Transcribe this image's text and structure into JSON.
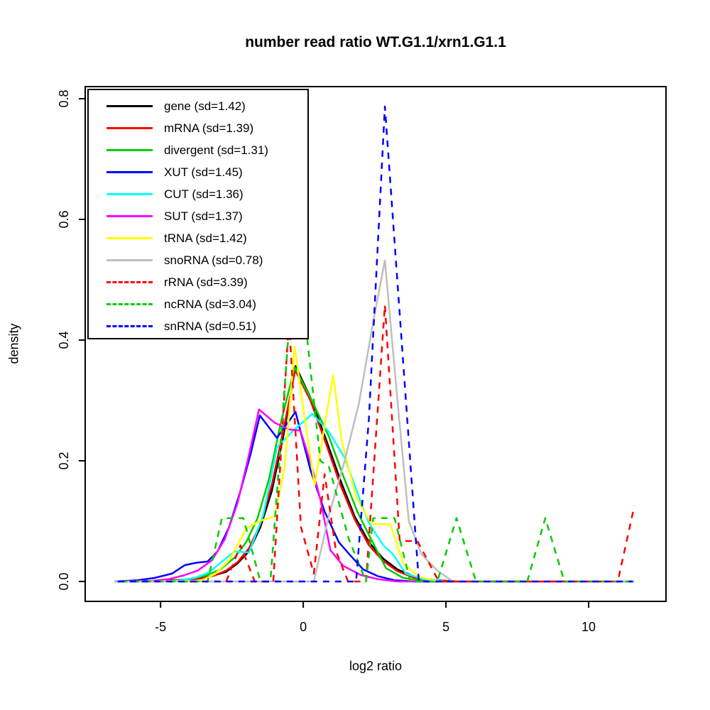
{
  "chart_data": {
    "type": "line",
    "title": "number read ratio WT.G1.1/xrn1.G1.1",
    "xlabel": "log2 ratio",
    "ylabel": "density",
    "xlim": [
      -7.64,
      12.71
    ],
    "ylim": [
      -0.033,
      0.82
    ],
    "grid": false,
    "legend_position": "top-left",
    "x_ticks": [
      {
        "value": -5,
        "label": "-5"
      },
      {
        "value": 0,
        "label": "0"
      },
      {
        "value": 5,
        "label": "5"
      },
      {
        "value": 10,
        "label": "10"
      }
    ],
    "y_ticks": [
      {
        "value": 0.0,
        "label": "0.0"
      },
      {
        "value": 0.2,
        "label": "0.2"
      },
      {
        "value": 0.4,
        "label": "0.4"
      },
      {
        "value": 0.6,
        "label": "0.6"
      },
      {
        "value": 0.8,
        "label": "0.8"
      }
    ],
    "series": [
      {
        "name": "gene",
        "label": "gene (sd=1.42)",
        "color": "#000000",
        "dash": false,
        "x": [
          -6.6,
          -5.0,
          -4.2,
          -3.6,
          -3.2,
          -2.7,
          -2.3,
          -1.9,
          -1.5,
          -1.1,
          -0.7,
          -0.27,
          0.25,
          0.8,
          1.3,
          1.8,
          2.3,
          2.8,
          3.3,
          3.9,
          4.6,
          5.5,
          11.6
        ],
        "y": [
          0,
          0.001,
          0.003,
          0.006,
          0.009,
          0.016,
          0.03,
          0.05,
          0.09,
          0.15,
          0.24,
          0.357,
          0.305,
          0.235,
          0.168,
          0.108,
          0.065,
          0.038,
          0.02,
          0.008,
          0.002,
          0,
          0
        ]
      },
      {
        "name": "mRNA",
        "label": "mRNA (sd=1.39)",
        "color": "#FF0000",
        "dash": false,
        "x": [
          -6.0,
          -5.0,
          -4.2,
          -3.6,
          -3.1,
          -2.7,
          -2.3,
          -1.9,
          -1.5,
          -1.1,
          -0.7,
          -0.28,
          0.25,
          0.8,
          1.3,
          1.8,
          2.3,
          2.8,
          3.3,
          3.9,
          4.6,
          5.5,
          11.6
        ],
        "y": [
          0,
          0.001,
          0.002,
          0.005,
          0.01,
          0.018,
          0.032,
          0.055,
          0.095,
          0.16,
          0.25,
          0.35,
          0.3,
          0.228,
          0.16,
          0.103,
          0.06,
          0.034,
          0.017,
          0.006,
          0.001,
          0,
          0
        ]
      },
      {
        "name": "divergent",
        "label": "divergent (sd=1.31)",
        "color": "#00CD00",
        "dash": false,
        "x": [
          -6.2,
          -4.6,
          -4.0,
          -3.4,
          -2.9,
          -2.4,
          -2.0,
          -1.6,
          -1.2,
          -0.8,
          -0.3,
          0.3,
          0.9,
          1.4,
          1.9,
          2.4,
          2.9,
          3.5,
          4.2,
          5.2,
          11.6
        ],
        "y": [
          0,
          0.001,
          0.004,
          0.01,
          0.02,
          0.04,
          0.065,
          0.105,
          0.17,
          0.26,
          0.355,
          0.3,
          0.24,
          0.175,
          0.115,
          0.068,
          0.022,
          0.006,
          0.001,
          0,
          0
        ]
      },
      {
        "name": "XUT",
        "label": "XUT (sd=1.45)",
        "color": "#0000FF",
        "dash": false,
        "x": [
          -6.6,
          -5.8,
          -5.2,
          -4.6,
          -4.15,
          -3.75,
          -3.35,
          -3.0,
          -2.6,
          -2.2,
          -1.85,
          -1.52,
          -0.92,
          -0.27,
          0.25,
          0.75,
          1.25,
          1.6,
          2.1,
          2.6,
          3.2,
          3.9,
          11.6
        ],
        "y": [
          0,
          0.002,
          0.006,
          0.013,
          0.027,
          0.031,
          0.033,
          0.05,
          0.09,
          0.15,
          0.21,
          0.275,
          0.238,
          0.281,
          0.185,
          0.116,
          0.065,
          0.046,
          0.02,
          0.009,
          0.002,
          0,
          0
        ]
      },
      {
        "name": "CUT",
        "label": "CUT (sd=1.36)",
        "color": "#00FFFF",
        "dash": false,
        "x": [
          -6.0,
          -4.4,
          -3.8,
          -3.3,
          -2.85,
          -2.4,
          -1.9,
          -1.4,
          -0.92,
          -0.35,
          0.32,
          0.9,
          1.45,
          1.95,
          2.31,
          2.8,
          3.13,
          3.6,
          4.2,
          5.0,
          11.6
        ],
        "y": [
          0,
          0.001,
          0.006,
          0.015,
          0.033,
          0.05,
          0.048,
          0.11,
          0.222,
          0.25,
          0.278,
          0.248,
          0.205,
          0.14,
          0.096,
          0.06,
          0.046,
          0.013,
          0.004,
          0,
          0
        ]
      },
      {
        "name": "SUT",
        "label": "SUT (sd=1.37)",
        "color": "#FF00FF",
        "dash": false,
        "x": [
          -6.2,
          -5.3,
          -4.7,
          -4.2,
          -3.7,
          -3.2,
          -2.75,
          -2.3,
          -1.9,
          -1.55,
          -1.0,
          -0.5,
          -0.1,
          0.3,
          0.6,
          0.95,
          1.4,
          2.0,
          2.6,
          3.3,
          11.6
        ],
        "y": [
          0,
          0.001,
          0.004,
          0.01,
          0.018,
          0.035,
          0.07,
          0.13,
          0.21,
          0.285,
          0.263,
          0.252,
          0.25,
          0.19,
          0.136,
          0.052,
          0.026,
          0.011,
          0.004,
          0,
          0
        ]
      },
      {
        "name": "tRNA",
        "label": "tRNA (sd=1.42)",
        "color": "#FFFF00",
        "dash": false,
        "x": [
          -5.8,
          -3.6,
          -3.1,
          -2.6,
          -2.0,
          -1.55,
          -1.0,
          -0.65,
          -0.3,
          0.05,
          0.4,
          0.72,
          1.05,
          1.35,
          1.85,
          2.4,
          3.05,
          3.5,
          4.05,
          4.7,
          11.6
        ],
        "y": [
          0,
          0.001,
          0.012,
          0.035,
          0.087,
          0.1,
          0.108,
          0.19,
          0.389,
          0.27,
          0.16,
          0.25,
          0.342,
          0.232,
          0.14,
          0.095,
          0.095,
          0.03,
          0.008,
          0,
          0
        ]
      },
      {
        "name": "snoRNA",
        "label": "snoRNA (sd=0.78)",
        "color": "#BEBEBE",
        "dash": false,
        "x": [
          -6.6,
          0.37,
          0.9,
          1.45,
          1.95,
          2.45,
          2.86,
          3.3,
          3.7,
          4.13,
          4.7,
          5.25,
          11.6
        ],
        "y": [
          0,
          0,
          0.11,
          0.2,
          0.295,
          0.43,
          0.532,
          0.3,
          0.1,
          0.046,
          0.018,
          0,
          0
        ]
      },
      {
        "name": "rRNA",
        "label": "rRNA (sd=3.39)",
        "color": "#FF0000",
        "dash": true,
        "x": [
          -2.7,
          -2.2,
          -1.7,
          -1.05,
          -0.5,
          -0.08,
          0.37,
          0.75,
          1.15,
          1.57,
          2.2,
          2.86,
          3.38,
          4.0,
          4.75,
          11.02,
          11.6
        ],
        "y": [
          0,
          0.06,
          0,
          0,
          0.435,
          0.09,
          0.013,
          0.178,
          0.05,
          0,
          0,
          0.458,
          0.067,
          0.067,
          0,
          0,
          0.125
        ]
      },
      {
        "name": "ncRNA",
        "label": "ncRNA (sd=3.04)",
        "color": "#00CD00",
        "dash": true,
        "x": [
          -6.4,
          -3.35,
          -2.85,
          -2.1,
          -1.5,
          -1.15,
          -0.5,
          0.1,
          0.6,
          0.9,
          1.6,
          2.2,
          2.45,
          3.2,
          3.75,
          4.7,
          5.37,
          6.05,
          7.85,
          8.48,
          9.15,
          11.55
        ],
        "y": [
          0,
          0,
          0.105,
          0.105,
          0,
          0,
          0.42,
          0.42,
          0.2,
          0.19,
          0.07,
          0,
          0.105,
          0.105,
          0,
          0,
          0.105,
          0,
          0,
          0.105,
          0,
          0
        ]
      },
      {
        "name": "snRNA",
        "label": "snRNA (sd=0.51)",
        "color": "#0000FF",
        "dash": true,
        "x": [
          -6.5,
          1.85,
          2.3,
          2.86,
          4.05,
          11.55
        ],
        "y": [
          0,
          0,
          0.27,
          0.787,
          0,
          0
        ]
      }
    ]
  }
}
